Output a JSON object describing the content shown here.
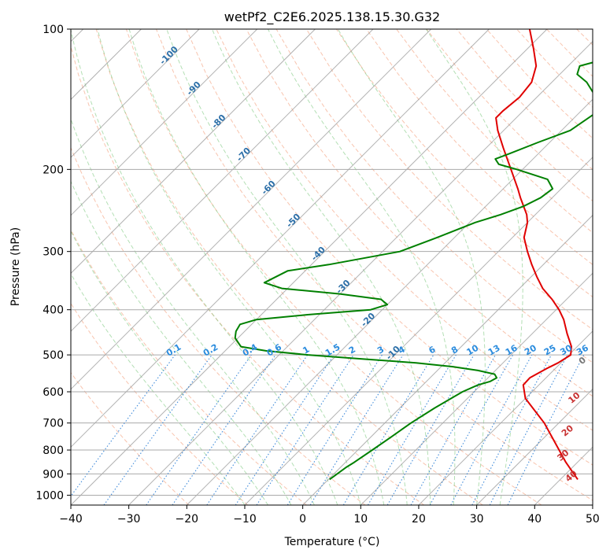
{
  "chart_data": {
    "type": "line",
    "title": "wetPf2_C2E6.2025.138.15.30.G32",
    "xlabel": "Temperature (°C)",
    "ylabel": "Pressure (hPa)",
    "xlim": [
      -40,
      50
    ],
    "ylim": [
      1050,
      100
    ],
    "y_scale": "log",
    "grid": true,
    "x_ticks": [
      -40,
      -30,
      -20,
      -10,
      0,
      10,
      20,
      30,
      40,
      50
    ],
    "x_tick_labels": [
      "−40",
      "−30",
      "−20",
      "−10",
      "0",
      "10",
      "20",
      "30",
      "40",
      "50"
    ],
    "y_ticks": [
      1000,
      900,
      800,
      700,
      600,
      500,
      400,
      300,
      200,
      100
    ],
    "y_tick_labels": [
      "1000",
      "900",
      "800",
      "700",
      "600",
      "500",
      "400",
      "300",
      "200",
      "100"
    ],
    "series": [
      {
        "color": "#e00000",
        "points": [
          [
            925,
            43
          ],
          [
            850,
            38
          ],
          [
            700,
            27.5
          ],
          [
            620,
            20
          ],
          [
            580,
            17.3
          ],
          [
            560,
            17.2
          ],
          [
            535,
            18.5
          ],
          [
            520,
            19.5
          ],
          [
            500,
            20.3
          ],
          [
            480,
            19
          ],
          [
            450,
            16
          ],
          [
            420,
            13
          ],
          [
            400,
            10.5
          ],
          [
            380,
            7.5
          ],
          [
            360,
            4
          ],
          [
            340,
            1
          ],
          [
            320,
            -2
          ],
          [
            300,
            -5
          ],
          [
            280,
            -8
          ],
          [
            260,
            -10
          ],
          [
            250,
            -11.5
          ],
          [
            230,
            -15.5
          ],
          [
            220,
            -17.5
          ],
          [
            200,
            -22
          ],
          [
            180,
            -27
          ],
          [
            165,
            -31
          ],
          [
            155,
            -33.5
          ],
          [
            150,
            -33.5
          ],
          [
            140,
            -33
          ],
          [
            130,
            -33.5
          ],
          [
            120,
            -35.5
          ],
          [
            110,
            -39
          ],
          [
            100,
            -43
          ]
        ]
      },
      {
        "color": "#008000",
        "points": [
          [
            925,
            0.2
          ],
          [
            870,
            1
          ],
          [
            850,
            1.5
          ],
          [
            800,
            2.5
          ],
          [
            750,
            3.5
          ],
          [
            700,
            4.5
          ],
          [
            650,
            6
          ],
          [
            600,
            8
          ],
          [
            580,
            9.5
          ],
          [
            570,
            11
          ],
          [
            560,
            11.5
          ],
          [
            550,
            10.5
          ],
          [
            540,
            7
          ],
          [
            530,
            2
          ],
          [
            520,
            -5
          ],
          [
            510,
            -15
          ],
          [
            500,
            -25
          ],
          [
            490,
            -33
          ],
          [
            480,
            -38
          ],
          [
            460,
            -40.5
          ],
          [
            445,
            -41.5
          ],
          [
            430,
            -42
          ],
          [
            420,
            -40
          ],
          [
            410,
            -32
          ],
          [
            400,
            -22
          ],
          [
            390,
            -20
          ],
          [
            380,
            -22
          ],
          [
            370,
            -30
          ],
          [
            360,
            -41
          ],
          [
            350,
            -45
          ],
          [
            330,
            -43
          ],
          [
            320,
            -37
          ],
          [
            300,
            -27
          ],
          [
            280,
            -23
          ],
          [
            260,
            -19
          ],
          [
            250,
            -16
          ],
          [
            240,
            -13.5
          ],
          [
            230,
            -12
          ],
          [
            220,
            -11.5
          ],
          [
            210,
            -14
          ],
          [
            200,
            -21
          ],
          [
            195,
            -25
          ],
          [
            190,
            -26.5
          ],
          [
            185,
            -25
          ],
          [
            175,
            -22
          ],
          [
            165,
            -18.5
          ],
          [
            150,
            -17
          ],
          [
            142,
            -19
          ],
          [
            130,
            -24
          ],
          [
            125,
            -27
          ],
          [
            120,
            -28
          ],
          [
            115,
            -24
          ],
          [
            110,
            -19
          ],
          [
            105,
            -14
          ],
          [
            100,
            -9
          ]
        ]
      }
    ],
    "mixing_ratio_labels": [
      "0.1",
      "0.2",
      "0.4",
      "0.6",
      "1",
      "1.5",
      "2",
      "3",
      "4",
      "6",
      "8",
      "10",
      "13",
      "16",
      "20",
      "25",
      "30",
      "36"
    ],
    "dry_adiabat_labels": [
      "-100",
      "-90",
      "-80",
      "-70",
      "-60",
      "-50",
      "-40",
      "-30",
      "-20",
      "-10"
    ],
    "moist_adiabat_labels": [
      "0",
      "10",
      "20",
      "30",
      "40"
    ]
  }
}
